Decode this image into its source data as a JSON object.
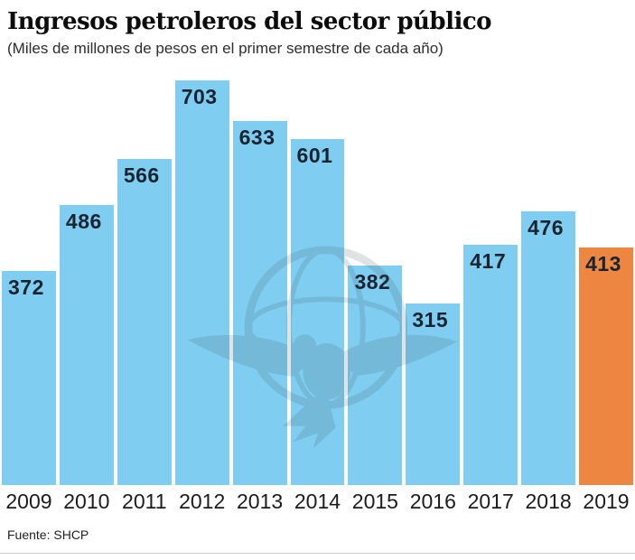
{
  "header": {
    "title": "Ingresos petroleros del sector público",
    "subtitle": "(Miles de millones de pesos en el primer semestre de cada año)"
  },
  "chart_data": {
    "type": "bar",
    "title": "Ingresos petroleros del sector público",
    "subtitle": "(Miles de millones de pesos en el primer semestre de cada año)",
    "categories": [
      "2009",
      "2010",
      "2011",
      "2012",
      "2013",
      "2014",
      "2015",
      "2016",
      "2017",
      "2018",
      "2019"
    ],
    "values": [
      372,
      486,
      566,
      703,
      633,
      601,
      382,
      315,
      417,
      476,
      413
    ],
    "xlabel": "",
    "ylabel": "Miles de millones de pesos",
    "ylim": [
      0,
      703
    ],
    "grid": false,
    "legend": false,
    "value_labels_position": "inside-top-left",
    "highlight_category": "2019"
  },
  "colors": {
    "bar": "#7fcdf0",
    "highlight_bar": "#ed8640",
    "value_label": "#1a2430",
    "background": "#ffffff"
  },
  "watermark": {
    "icon": "eagle-globe-watermark"
  },
  "footer": {
    "source": "Fuente: SHCP"
  }
}
